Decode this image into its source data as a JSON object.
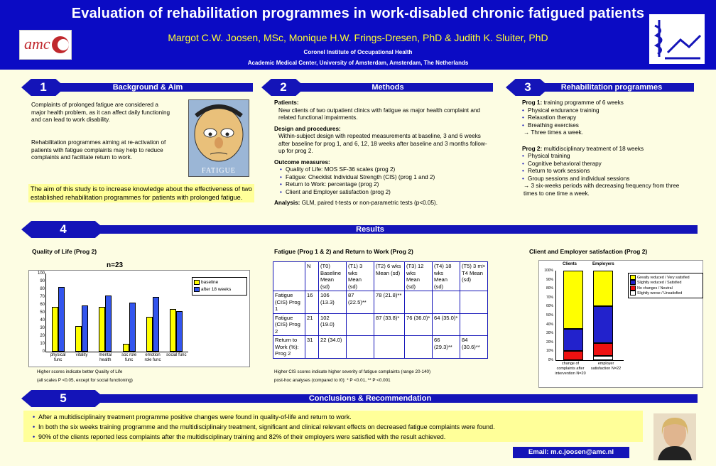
{
  "header": {
    "title": "Evaluation of rehabilitation programmes in work-disabled chronic fatigued patients",
    "authors": "Margot C.W. Joosen, MSc, Monique H.W. Frings-Dresen, PhD & Judith K. Sluiter, PhD",
    "institute": "Coronel Institute of Occupational Health",
    "center": "Academic Medical Center, University of Amsterdam, Amsterdam, The Netherlands",
    "logo_text": "amc"
  },
  "sections": {
    "s1": {
      "num": "1",
      "title": "Background & Aim"
    },
    "s2": {
      "num": "2",
      "title": "Methods"
    },
    "s3": {
      "num": "3",
      "title": "Rehabilitation programmes"
    },
    "s4": {
      "num": "4",
      "title": "Results"
    },
    "s5": {
      "num": "5",
      "title": "Conclusions & Recommendation"
    }
  },
  "background": {
    "p1": "Complaints of prolonged fatigue are considered a major health problem, as it can affect daily functioning and can lead to work disability.",
    "p2": "Rehabilitation programmes aiming at re-activation of patients with fatigue complaints may help to reduce complaints and facilitate return to work.",
    "aim": "The aim of this study is to increase knowledge about the effectiveness of two established rehabilitation programmes for patients with prolonged fatigue.",
    "image_caption": "FATIGUE"
  },
  "methods": {
    "patients_h": "Patients:",
    "patients": "New clients of two outpatient clinics with fatigue as major health complaint and related functional impairments.",
    "design_h": "Design and procedures:",
    "design": "Within-subject design with repeated measurements at baseline, 3 and 6 weeks after baseline for prog 1, and  6, 12, 18 weeks after baseline and 3 months follow-up for prog 2.",
    "outcome_h": "Outcome measures:",
    "outcomes": [
      "Quality of Life: MOS SF-36 scales (prog 2)",
      "Fatigue: Checklist Individual Strength (CIS) (prog 1 and 2)",
      "Return to Work: percentage (prog 2)",
      "Client and Employer satisfaction (prog 2)"
    ],
    "analysis_h": "Analysis:",
    "analysis": "GLM, paired t-tests or non-parametric tests (p<0.05)."
  },
  "programmes": {
    "p1_h": "Prog 1:",
    "p1_desc": "training programme of 6 weeks",
    "p1_items": [
      "Physical endurance training",
      "Relaxation therapy",
      "Breathing exercises"
    ],
    "p1_note": "→ Three times a week.",
    "p2_h": "Prog 2:",
    "p2_desc": "multidisciplinary treatment of 18 weeks",
    "p2_items": [
      "Physical training",
      "Cognitive behavioral therapy",
      "Return to work sessions",
      "Group sessions and individual sessions"
    ],
    "p2_note": "→  3 six-weeks periods with decreasing frequency from three times to one time a week."
  },
  "qol": {
    "heading": "Quality of Life (Prog 2)",
    "n_label": "n=23",
    "note1": "Higher scores indicate better Quality of Life",
    "note2": "(all scales P <0.05, except for social functioning)",
    "chart_data": {
      "type": "bar",
      "categories": [
        "physical func",
        "vitality",
        "mental health",
        "soc role func",
        "emotion role func",
        "social func"
      ],
      "series": [
        {
          "name": "baseline",
          "values": [
            57,
            33,
            57,
            10,
            45,
            55
          ],
          "color": "#ffff00"
        },
        {
          "name": "after 18 weeks",
          "values": [
            83,
            59,
            72,
            63,
            70,
            52
          ],
          "color": "#3355ee"
        }
      ],
      "yticks": [
        "0",
        "10",
        "20",
        "30",
        "40",
        "50",
        "60",
        "70",
        "80",
        "90",
        "100"
      ],
      "ylim": [
        0,
        100
      ],
      "legend": "top-right"
    }
  },
  "fatigue": {
    "heading": "Fatigue (Prog 1 & 2) and Return to Work (Prog 2)",
    "header_row": [
      "",
      "N",
      "(T0) Baseline Mean (sd)",
      "(T1) 3 wks Mean (sd)",
      "(T2) 6 wks Mean (sd)",
      "(T3) 12 wks Mean (sd)",
      "(T4) 18 wks Mean (sd)",
      "(T5) 3 m> T4 Mean (sd)"
    ],
    "rows": [
      [
        "Fatigue (CIS) Prog 1",
        "16",
        "106 (13.3)",
        "87 (22.5)**",
        "78 (21.8)**",
        "",
        "",
        ""
      ],
      [
        "Fatigue (CIS) Prog 2",
        "21",
        "102 (19.0)",
        "",
        "87 (33.8)*",
        "76 (36.0)*",
        "64 (35.0)*",
        ""
      ],
      [
        "Return to Work (%): Prog 2",
        "31",
        "22 (34.0)",
        "",
        "",
        "",
        "66 (29.3)**",
        "84 (30.6)**"
      ]
    ],
    "note1": "Higher CIS scores indicate higher severity of fatigue complaints (range 20-140)",
    "note2": "post-hoc analyses (compared to t0): * P <0.01, ** P <0.001"
  },
  "satisfaction": {
    "heading": "Client and Employer satisfaction (Prog 2)",
    "col_labels": [
      "Clients",
      "Employers"
    ],
    "x_labels": [
      "change of complaints after intervention N=20",
      "employer satisfaction N=22"
    ],
    "yticks": [
      "0%",
      "10%",
      "20%",
      "30%",
      "40%",
      "50%",
      "60%",
      "70%",
      "80%",
      "90%",
      "100%"
    ],
    "chart_data": {
      "type": "bar",
      "stacked": true,
      "categories": [
        "Clients",
        "Employers"
      ],
      "series": [
        {
          "name": "Slightly worse / Unsatisfied",
          "values": [
            0,
            5
          ],
          "color": "#ffffff"
        },
        {
          "name": "No changes / Neutral",
          "values": [
            10,
            14
          ],
          "color": "#ee1111"
        },
        {
          "name": "Slightly reduced / Satisfied",
          "values": [
            25,
            41
          ],
          "color": "#2222cc"
        },
        {
          "name": "Greatly reduced / Very satisfied",
          "values": [
            65,
            40
          ],
          "color": "#ffff00"
        }
      ],
      "ylim": [
        0,
        100
      ]
    },
    "legend": [
      {
        "label": "Greatly reduced / Very satisfied",
        "color": "#ffff00"
      },
      {
        "label": "Slightly reduced / Satisfied",
        "color": "#2222cc"
      },
      {
        "label": "No changes / Neutral",
        "color": "#ee1111"
      },
      {
        "label": "Slightly worse / Unsatisfied",
        "color": "#ffffff"
      }
    ]
  },
  "conclusions": [
    "After a multidisciplinairy treatment programme positive changes were found in quality-of-life and return to work.",
    "In both the six weeks training programme and the multidisciplinairy treatment, significant and clinical relevant effects on decreased fatigue complaints were found.",
    "90% of the clients reported less complaints after the multidisciplinary training and 82% of their employers were satisfied with the result achieved."
  ],
  "email": "Email: m.c.joosen@amc.nl"
}
